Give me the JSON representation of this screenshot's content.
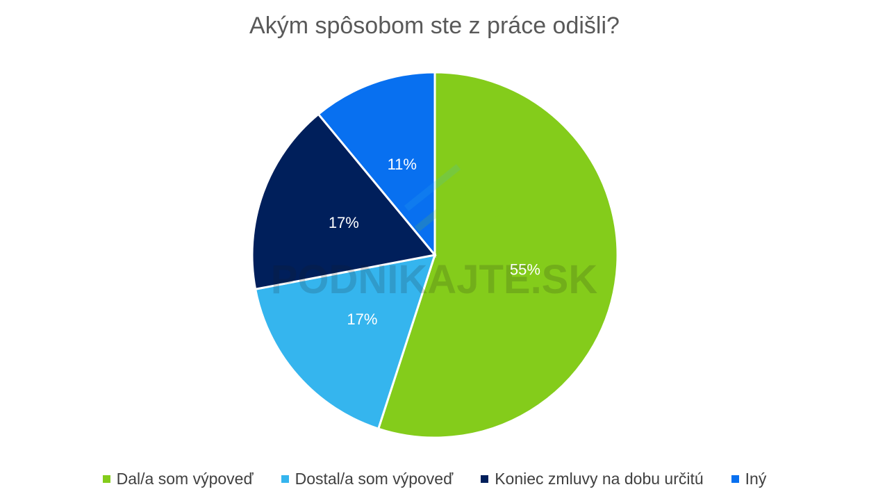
{
  "chart_data": {
    "type": "pie",
    "title": "Akým spôsobom ste z práce odišli?",
    "categories": [
      "Dal/a som výpoveď",
      "Dostal/a som výpoveď",
      "Koniec zmluvy na dobu určitú",
      "Iný"
    ],
    "values": [
      55,
      17,
      17,
      11
    ],
    "labels": [
      "55%",
      "17%",
      "17%",
      "11%"
    ],
    "colors": [
      "#84CC1B",
      "#35B5EE",
      "#001F5B",
      "#0870F0"
    ],
    "legend_position": "bottom",
    "watermark": "PODNIKAJTE.SK"
  }
}
